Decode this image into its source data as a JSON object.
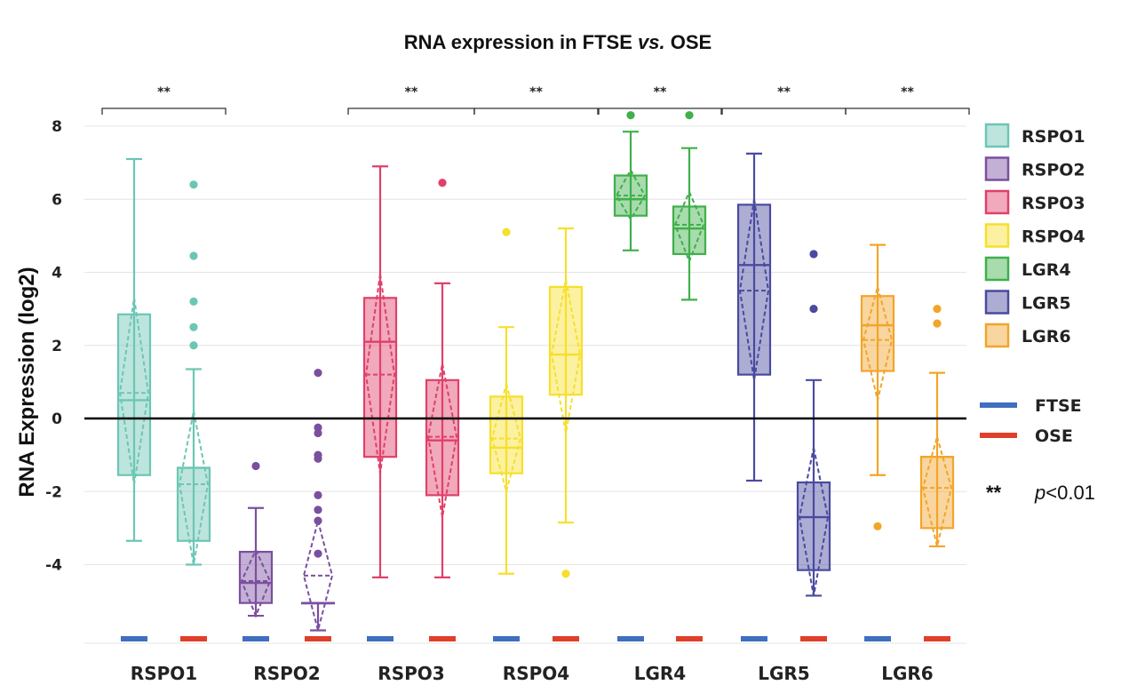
{
  "chart_data": {
    "type": "box",
    "title": {
      "pre": "RNA expression in FTSE ",
      "italic": "vs.",
      "post": " OSE"
    },
    "ylabel": "RNA Expression (log2)",
    "xlabel": "",
    "ylim": [
      -6,
      8.6
    ],
    "yticks": [
      8,
      6,
      4,
      2,
      0,
      -2,
      -4
    ],
    "categories": [
      "RSPO1",
      "RSPO2",
      "RSPO3",
      "RSPO4",
      "LGR4",
      "LGR5",
      "LGR6"
    ],
    "colors": {
      "RSPO1": "#6cc6b4",
      "RSPO2": "#7b4fa0",
      "RSPO3": "#e0406a",
      "RSPO4": "#f7df2c",
      "LGR4": "#3fb04a",
      "LGR5": "#4a4aa0",
      "LGR6": "#f2a52a"
    },
    "groups": [
      "FTSE",
      "OSE"
    ],
    "group_colors": {
      "FTSE": "#3f6fbf",
      "OSE": "#e0402a"
    },
    "boxes": [
      {
        "gene": "RSPO1",
        "group": "FTSE",
        "min": -3.35,
        "q1": -1.55,
        "median": 0.5,
        "mean": 0.7,
        "q3": 2.85,
        "max": 7.1,
        "ci": [
          -1.8,
          3.3
        ],
        "outliers": []
      },
      {
        "gene": "RSPO1",
        "group": "OSE",
        "min": -4.0,
        "q1": -3.35,
        "median": -1.35,
        "mean": -1.8,
        "q3": -1.35,
        "max": 1.35,
        "ci": [
          -4.0,
          0.2
        ],
        "outliers": [
          2.0,
          2.5,
          3.2,
          4.45,
          6.4
        ]
      },
      {
        "gene": "RSPO2",
        "group": "FTSE",
        "min": -5.4,
        "q1": -5.05,
        "median": -4.5,
        "mean": -4.45,
        "q3": -3.65,
        "max": -2.45,
        "ci": [
          -5.4,
          -3.6
        ],
        "outliers": [
          -1.3
        ]
      },
      {
        "gene": "RSPO2",
        "group": "OSE",
        "min": -5.8,
        "q1": -5.05,
        "median": -5.05,
        "mean": -4.3,
        "q3": -5.05,
        "max": -5.05,
        "ci": [
          -5.8,
          -2.8
        ],
        "outliers": [
          -3.7,
          -2.8,
          -2.5,
          -2.1,
          -1.1,
          -1.0,
          -0.4,
          -0.25,
          1.25
        ]
      },
      {
        "gene": "RSPO3",
        "group": "FTSE",
        "min": -4.35,
        "q1": -1.05,
        "median": 2.1,
        "mean": 1.2,
        "q3": 3.3,
        "max": 6.9,
        "ci": [
          -1.5,
          3.95
        ],
        "outliers": []
      },
      {
        "gene": "RSPO3",
        "group": "OSE",
        "min": -4.35,
        "q1": -2.1,
        "median": -0.6,
        "mean": -0.5,
        "q3": 1.05,
        "max": 3.7,
        "ci": [
          -2.7,
          1.5
        ],
        "outliers": [
          6.45
        ]
      },
      {
        "gene": "RSPO4",
        "group": "FTSE",
        "min": -4.25,
        "q1": -1.5,
        "median": -0.8,
        "mean": -0.55,
        "q3": 0.6,
        "max": 2.5,
        "ci": [
          -2.0,
          0.95
        ],
        "outliers": [
          5.1
        ]
      },
      {
        "gene": "RSPO4",
        "group": "OSE",
        "min": -2.85,
        "q1": 0.65,
        "median": 1.75,
        "mean": 1.75,
        "q3": 3.6,
        "max": 5.2,
        "ci": [
          -0.4,
          3.8
        ],
        "outliers": [
          -4.25
        ]
      },
      {
        "gene": "LGR4",
        "group": "FTSE",
        "min": 4.6,
        "q1": 5.55,
        "median": 6.0,
        "mean": 6.1,
        "q3": 6.65,
        "max": 7.85,
        "ci": [
          5.45,
          6.8
        ],
        "outliers": [
          8.3
        ]
      },
      {
        "gene": "LGR4",
        "group": "OSE",
        "min": 3.25,
        "q1": 4.5,
        "median": 5.2,
        "mean": 5.3,
        "q3": 5.8,
        "max": 7.4,
        "ci": [
          4.3,
          6.2
        ],
        "outliers": [
          8.3
        ]
      },
      {
        "gene": "LGR5",
        "group": "FTSE",
        "min": -1.7,
        "q1": 1.2,
        "median": 4.2,
        "mean": 3.5,
        "q3": 5.85,
        "max": 7.25,
        "ci": [
          1.05,
          6.0
        ],
        "outliers": []
      },
      {
        "gene": "LGR5",
        "group": "OSE",
        "min": -4.85,
        "q1": -4.15,
        "median": -2.7,
        "mean": -2.7,
        "q3": -1.75,
        "max": 1.05,
        "ci": [
          -4.85,
          -0.8
        ],
        "outliers": [
          3.0,
          4.5
        ]
      },
      {
        "gene": "LGR6",
        "group": "FTSE",
        "min": -1.55,
        "q1": 1.3,
        "median": 2.55,
        "mean": 2.15,
        "q3": 3.35,
        "max": 4.75,
        "ci": [
          0.5,
          3.6
        ],
        "outliers": [
          -2.95
        ]
      },
      {
        "gene": "LGR6",
        "group": "OSE",
        "min": -3.5,
        "q1": -3.0,
        "median": -1.05,
        "mean": -1.9,
        "q3": -1.05,
        "max": 1.25,
        "ci": [
          -3.5,
          -0.5
        ],
        "outliers": [
          2.6,
          3.0
        ]
      }
    ],
    "significance": [
      {
        "gene": "RSPO1",
        "label": "**"
      },
      {
        "gene": "RSPO3",
        "label": "**"
      },
      {
        "gene": "RSPO4",
        "label": "**"
      },
      {
        "gene": "LGR4",
        "label": "**"
      },
      {
        "gene": "LGR5",
        "label": "**"
      },
      {
        "gene": "LGR6",
        "label": "**"
      }
    ],
    "legend": {
      "position": "right",
      "genes": [
        "RSPO1",
        "RSPO2",
        "RSPO3",
        "RSPO4",
        "LGR4",
        "LGR5",
        "LGR6"
      ],
      "groups": [
        "FTSE",
        "OSE"
      ]
    },
    "note": {
      "stars": "**",
      "p_italic": "p",
      "p_rest": "<0.01"
    },
    "zero_line": true,
    "grid": true
  }
}
